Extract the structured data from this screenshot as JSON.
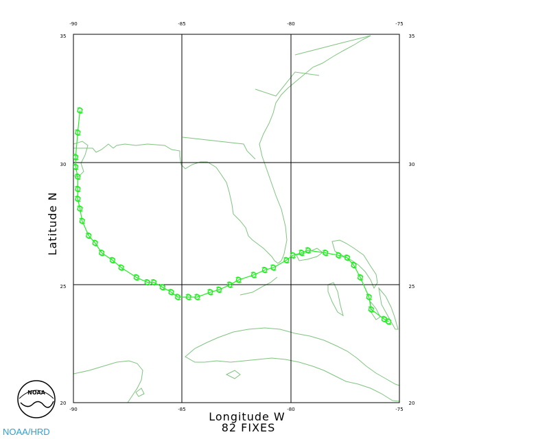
{
  "map": {
    "xlabel": "Longitude W",
    "ylabel": "Latitude N",
    "fixes_label": "82 FIXES",
    "credit": "NOAA/HRD",
    "logo_text": "NOAA",
    "lon_ticks": [
      "-90",
      "-85",
      "-80",
      "-75"
    ],
    "lat_ticks": [
      "35",
      "30",
      "25",
      "20"
    ],
    "lon_range": [
      -90,
      -75
    ],
    "lat_range": [
      20,
      35
    ],
    "colors": {
      "coast": "#7dc47d",
      "track": "#22ee22",
      "grid": "#000000",
      "credit": "#2aa0d8"
    }
  },
  "chart_data": {
    "type": "scatter",
    "xlim": [
      -90,
      -75
    ],
    "ylim": [
      20,
      35
    ],
    "xlabel": "Longitude W",
    "ylabel": "Latitude N",
    "grid": true,
    "track": [
      [
        -75.5,
        23.3
      ],
      [
        -75.7,
        23.4
      ],
      [
        -76.3,
        23.8
      ],
      [
        -76.4,
        24.3
      ],
      [
        -76.8,
        25.1
      ],
      [
        -77.1,
        25.6
      ],
      [
        -77.4,
        25.9
      ],
      [
        -77.8,
        26.0
      ],
      [
        -78.4,
        26.1
      ],
      [
        -79.2,
        26.2
      ],
      [
        -79.5,
        26.1
      ],
      [
        -79.9,
        26.0
      ],
      [
        -80.2,
        25.8
      ],
      [
        -80.8,
        25.5
      ],
      [
        -81.2,
        25.4
      ],
      [
        -81.7,
        25.2
      ],
      [
        -82.4,
        25.0
      ],
      [
        -82.8,
        24.8
      ],
      [
        -83.3,
        24.6
      ],
      [
        -83.7,
        24.5
      ],
      [
        -84.3,
        24.3
      ],
      [
        -84.7,
        24.3
      ],
      [
        -85.2,
        24.3
      ],
      [
        -85.5,
        24.5
      ],
      [
        -85.9,
        24.7
      ],
      [
        -86.3,
        24.9
      ],
      [
        -86.6,
        24.9
      ],
      [
        -87.1,
        25.1
      ],
      [
        -87.8,
        25.5
      ],
      [
        -88.2,
        25.8
      ],
      [
        -88.7,
        26.1
      ],
      [
        -89.0,
        26.5
      ],
      [
        -89.3,
        26.8
      ],
      [
        -89.6,
        27.4
      ],
      [
        -89.7,
        27.9
      ],
      [
        -89.8,
        28.3
      ],
      [
        -89.8,
        28.7
      ],
      [
        -89.8,
        29.2
      ],
      [
        -89.9,
        29.6
      ],
      [
        -89.9,
        30.0
      ],
      [
        -89.8,
        31.0
      ],
      [
        -89.7,
        31.9
      ]
    ]
  }
}
